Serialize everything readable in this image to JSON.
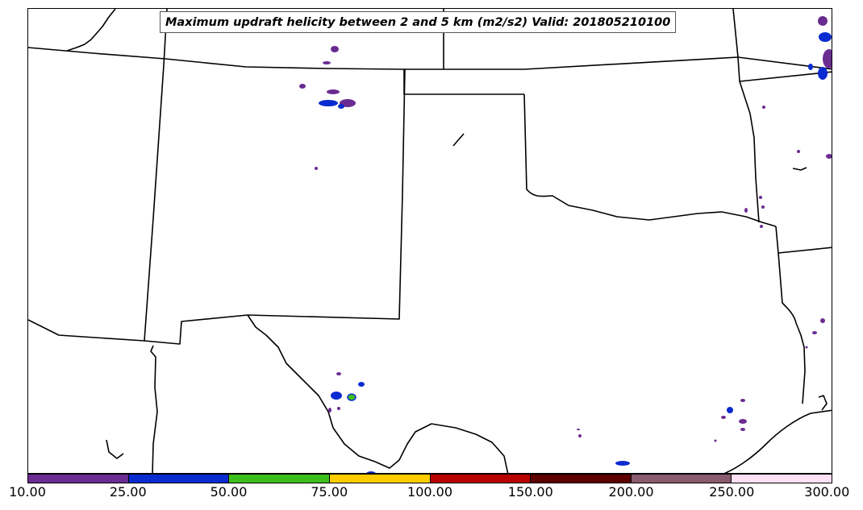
{
  "title": "Maximum updraft helicity between 2 and 5 km (m2/s2) Valid: 201805210100",
  "colorbar": {
    "colors": [
      "#6a2c91",
      "#0a2bd0",
      "#3cbf1a",
      "#ffcc00",
      "#b80000",
      "#5c0000",
      "#8a5a6e",
      "#ffe0f5"
    ],
    "ticks": [
      "10.00",
      "25.00",
      "50.00",
      "75.00",
      "100.00",
      "150.00",
      "200.00",
      "250.00",
      "300.00"
    ]
  },
  "map": {
    "border_color": "#000000",
    "helicity_color_low": "#6a2c91",
    "helicity_color_mid": "#0a2bd0",
    "helicity_color_high": "#3cbf1a"
  }
}
